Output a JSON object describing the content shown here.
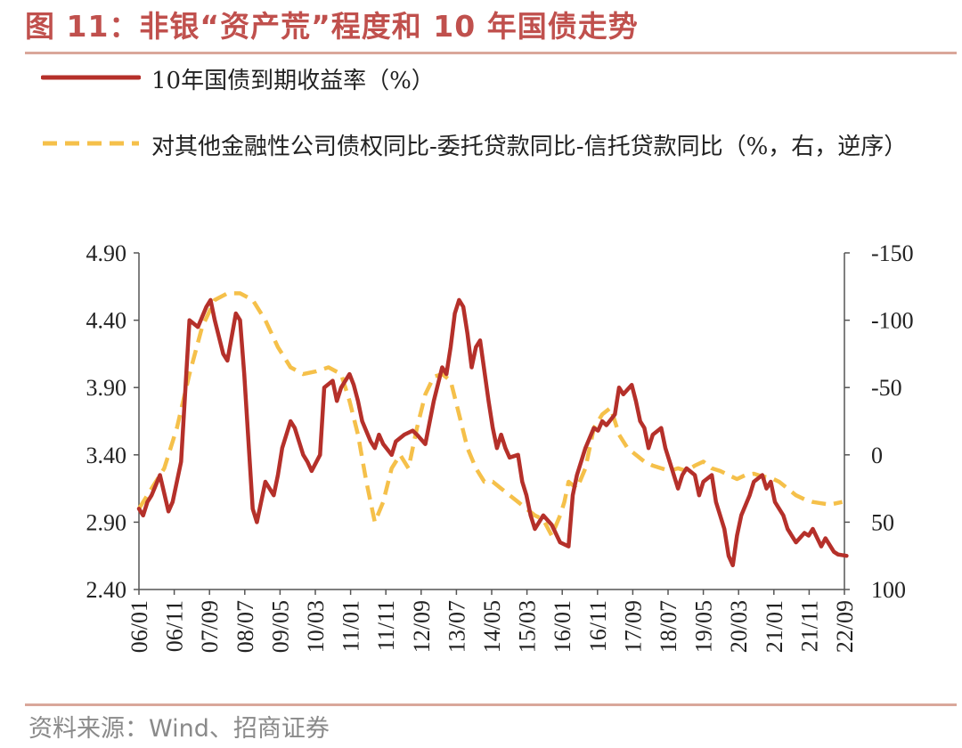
{
  "title": "图 11：非银“资产荒”程度和 10 年国债走势",
  "source": "资料来源：Wind、招商证券",
  "colors": {
    "series1": "#b5302a",
    "series2": "#f5c04a",
    "title": "#c0504d"
  },
  "chart_data": {
    "type": "line",
    "title": "图 11：非银“资产荒”程度和 10 年国债走势",
    "xlabel": "",
    "ylabel_left": "",
    "ylabel_right": "",
    "ylim_left": [
      2.4,
      4.9
    ],
    "yticks_left": [
      "4.90",
      "4.40",
      "3.90",
      "3.40",
      "2.90",
      "2.40"
    ],
    "ylim_right": [
      -150,
      100
    ],
    "right_axis_inverted": true,
    "yticks_right": [
      "-150",
      "-100",
      "-50",
      "0",
      "50",
      "100"
    ],
    "x_ticks": [
      "06/01",
      "06/11",
      "07/09",
      "08/07",
      "09/05",
      "10/03",
      "11/01",
      "11/11",
      "12/09",
      "13/07",
      "14/05",
      "15/03",
      "16/01",
      "16/11",
      "17/09",
      "18/07",
      "19/05",
      "20/03",
      "21/01",
      "21/11",
      "22/09"
    ],
    "series": [
      {
        "name": "10年国债到期收益率（%）",
        "axis": "left",
        "style": "solid",
        "x": [
          2006.0,
          2006.1,
          2006.2,
          2006.3,
          2006.5,
          2006.7,
          2006.8,
          2007.0,
          2007.2,
          2007.4,
          2007.6,
          2007.7,
          2007.8,
          2008.0,
          2008.1,
          2008.3,
          2008.4,
          2008.5,
          2008.7,
          2008.8,
          2009.0,
          2009.1,
          2009.2,
          2009.3,
          2009.4,
          2009.6,
          2009.7,
          2009.9,
          2010.0,
          2010.1,
          2010.3,
          2010.4,
          2010.6,
          2010.7,
          2010.8,
          2011.0,
          2011.1,
          2011.2,
          2011.3,
          2011.5,
          2011.6,
          2011.7,
          2011.8,
          2012.0,
          2012.1,
          2012.3,
          2012.5,
          2012.6,
          2012.8,
          2013.0,
          2013.2,
          2013.3,
          2013.4,
          2013.5,
          2013.6,
          2013.7,
          2013.8,
          2013.9,
          2014.0,
          2014.1,
          2014.3,
          2014.4,
          2014.5,
          2014.6,
          2014.7,
          2014.8,
          2015.0,
          2015.1,
          2015.2,
          2015.3,
          2015.4,
          2015.6,
          2015.8,
          2016.0,
          2016.2,
          2016.3,
          2016.4,
          2016.6,
          2016.8,
          2016.9,
          2017.0,
          2017.1,
          2017.3,
          2017.4,
          2017.5,
          2017.7,
          2017.8,
          2017.9,
          2018.0,
          2018.1,
          2018.2,
          2018.4,
          2018.5,
          2018.6,
          2018.8,
          2018.9,
          2019.0,
          2019.2,
          2019.3,
          2019.4,
          2019.6,
          2019.7,
          2019.9,
          2020.0,
          2020.1,
          2020.2,
          2020.3,
          2020.5,
          2020.6,
          2020.8,
          2020.9,
          2021.0,
          2021.1,
          2021.3,
          2021.4,
          2021.6,
          2021.8,
          2021.9,
          2022.0,
          2022.2,
          2022.3,
          2022.5,
          2022.6,
          2022.8
        ],
        "y": [
          3.0,
          2.95,
          3.05,
          3.1,
          3.25,
          2.98,
          3.05,
          3.35,
          4.4,
          4.35,
          4.5,
          4.55,
          4.4,
          4.15,
          4.1,
          4.45,
          4.4,
          4.0,
          3.0,
          2.9,
          3.2,
          3.15,
          3.1,
          3.25,
          3.45,
          3.65,
          3.6,
          3.4,
          3.35,
          3.28,
          3.4,
          3.9,
          3.95,
          3.8,
          3.9,
          4.0,
          3.92,
          3.8,
          3.65,
          3.5,
          3.45,
          3.55,
          3.48,
          3.4,
          3.5,
          3.55,
          3.58,
          3.55,
          3.48,
          3.8,
          4.05,
          4.0,
          4.2,
          4.45,
          4.55,
          4.5,
          4.3,
          4.05,
          4.2,
          4.25,
          3.8,
          3.6,
          3.45,
          3.55,
          3.45,
          3.38,
          3.4,
          3.2,
          3.1,
          2.95,
          2.85,
          2.95,
          2.88,
          2.75,
          2.72,
          3.1,
          3.25,
          3.45,
          3.6,
          3.58,
          3.65,
          3.62,
          3.7,
          3.9,
          3.85,
          3.92,
          3.8,
          3.65,
          3.6,
          3.45,
          3.55,
          3.6,
          3.45,
          3.35,
          3.15,
          3.25,
          3.3,
          3.25,
          3.1,
          3.2,
          3.25,
          3.05,
          2.85,
          2.65,
          2.58,
          2.8,
          2.95,
          3.1,
          3.2,
          3.25,
          3.15,
          3.2,
          3.05,
          2.95,
          2.85,
          2.75,
          2.82,
          2.8,
          2.85,
          2.72,
          2.78,
          2.68,
          2.66,
          2.65
        ]
      },
      {
        "name": "对其他金融性公司债权同比-委托贷款同比-信托贷款同比（%，右，逆序）",
        "axis": "right",
        "style": "dashed",
        "x": [
          2006.0,
          2006.3,
          2006.6,
          2006.9,
          2007.2,
          2007.5,
          2007.8,
          2008.1,
          2008.4,
          2008.7,
          2009.0,
          2009.3,
          2009.6,
          2009.9,
          2010.2,
          2010.5,
          2010.8,
          2011.0,
          2011.2,
          2011.4,
          2011.6,
          2011.8,
          2012.0,
          2012.2,
          2012.4,
          2012.6,
          2012.8,
          2013.0,
          2013.2,
          2013.4,
          2013.6,
          2013.8,
          2014.0,
          2014.2,
          2014.4,
          2014.6,
          2014.8,
          2015.0,
          2015.2,
          2015.4,
          2015.6,
          2015.8,
          2016.0,
          2016.1,
          2016.2,
          2016.4,
          2016.6,
          2016.8,
          2017.0,
          2017.2,
          2017.4,
          2017.6,
          2017.8,
          2018.0,
          2018.2,
          2018.4,
          2018.6,
          2018.8,
          2019.0,
          2019.2,
          2019.4,
          2019.6,
          2019.8,
          2020.0,
          2020.2,
          2020.4,
          2020.6,
          2020.8,
          2021.0,
          2021.2,
          2021.4,
          2021.6,
          2021.8,
          2022.0,
          2022.2,
          2022.4,
          2022.7
        ],
        "y": [
          40,
          25,
          10,
          -20,
          -60,
          -95,
          -115,
          -120,
          -120,
          -115,
          -100,
          -80,
          -65,
          -60,
          -62,
          -65,
          -60,
          -40,
          -15,
          20,
          50,
          35,
          10,
          0,
          10,
          -20,
          -45,
          -58,
          -60,
          -55,
          -30,
          -5,
          10,
          20,
          20,
          25,
          30,
          35,
          40,
          45,
          48,
          60,
          45,
          35,
          20,
          25,
          10,
          -20,
          -30,
          -35,
          -15,
          -5,
          0,
          5,
          8,
          10,
          12,
          10,
          12,
          8,
          5,
          10,
          12,
          15,
          18,
          15,
          14,
          16,
          17,
          20,
          25,
          30,
          33,
          35,
          36,
          37,
          35
        ]
      }
    ]
  }
}
